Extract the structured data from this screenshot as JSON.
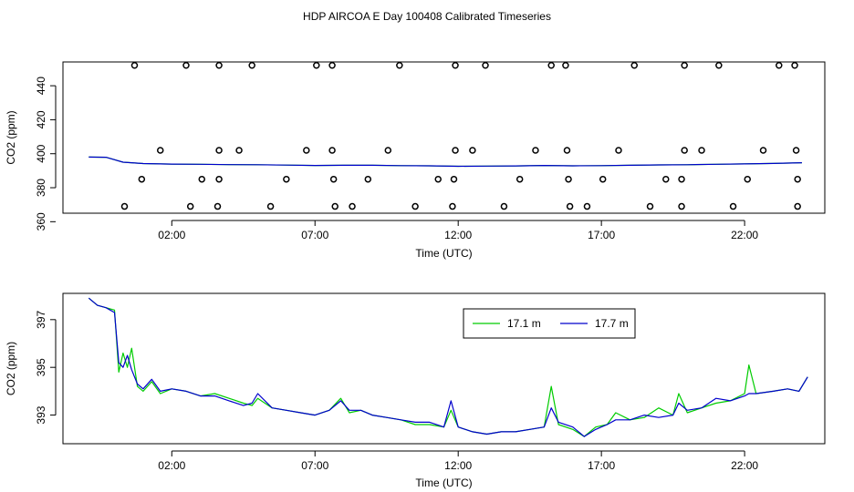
{
  "title": "HDP AIRCOA E  Day 100408  Calibrated Timeseries",
  "colors": {
    "green": "#00cc00",
    "blue": "#0000cc",
    "axis": "#000000"
  },
  "chart_data": [
    {
      "type": "line",
      "panel": "top",
      "xlabel": "Time (UTC)",
      "ylabel": "CO2 (ppm)",
      "xlim": [
        -1.8,
        24.8
      ],
      "ylim": [
        365,
        454
      ],
      "x_ticks": [
        2,
        7,
        12,
        17,
        22
      ],
      "x_tick_labels": [
        "02:00",
        "07:00",
        "12:00",
        "17:00",
        "22:00"
      ],
      "y_ticks": [
        360,
        380,
        400,
        420,
        440
      ],
      "y_tick_labels": [
        "360",
        "380",
        "400",
        "420",
        "440"
      ],
      "series": [
        {
          "color": "#00cc00",
          "x": [
            -0.9,
            -0.3,
            0.3,
            1,
            2,
            3,
            4,
            5,
            6,
            7,
            8,
            9,
            10,
            11,
            12,
            13,
            14,
            15,
            16,
            17,
            18,
            19,
            20,
            21,
            22,
            23,
            24
          ],
          "y": [
            398,
            397.9,
            395,
            394.2,
            393.9,
            393.8,
            393.6,
            393.5,
            393.3,
            393.1,
            393.2,
            393.2,
            393,
            392.9,
            392.6,
            392.7,
            392.8,
            393.1,
            392.9,
            393,
            393.2,
            393.4,
            393.5,
            393.8,
            394,
            394.3,
            394.7
          ]
        },
        {
          "color": "#0000cc",
          "x": [
            -0.9,
            -0.3,
            0.3,
            1,
            2,
            3,
            4,
            5,
            6,
            7,
            8,
            9,
            10,
            11,
            12,
            13,
            14,
            15,
            16,
            17,
            18,
            19,
            20,
            21,
            22,
            23,
            24
          ],
          "y": [
            398,
            397.9,
            395,
            394.2,
            393.9,
            393.8,
            393.6,
            393.5,
            393.3,
            393.1,
            393.2,
            393.2,
            393,
            392.9,
            392.6,
            392.7,
            392.8,
            393.1,
            392.9,
            393,
            393.2,
            393.4,
            393.5,
            393.8,
            394,
            394.3,
            394.7
          ]
        }
      ],
      "markers": [
        {
          "x": 0.7,
          "y": 452
        },
        {
          "x": 2.5,
          "y": 452
        },
        {
          "x": 3.65,
          "y": 452
        },
        {
          "x": 4.8,
          "y": 452
        },
        {
          "x": 7.05,
          "y": 452
        },
        {
          "x": 7.6,
          "y": 452
        },
        {
          "x": 9.95,
          "y": 452
        },
        {
          "x": 11.9,
          "y": 452
        },
        {
          "x": 12.95,
          "y": 452
        },
        {
          "x": 15.25,
          "y": 452
        },
        {
          "x": 15.75,
          "y": 452
        },
        {
          "x": 18.15,
          "y": 452
        },
        {
          "x": 19.9,
          "y": 452
        },
        {
          "x": 21.1,
          "y": 452
        },
        {
          "x": 23.2,
          "y": 452
        },
        {
          "x": 23.75,
          "y": 452
        },
        {
          "x": 1.6,
          "y": 402
        },
        {
          "x": 3.65,
          "y": 402
        },
        {
          "x": 4.35,
          "y": 402
        },
        {
          "x": 6.7,
          "y": 402
        },
        {
          "x": 7.6,
          "y": 402
        },
        {
          "x": 9.55,
          "y": 402
        },
        {
          "x": 11.9,
          "y": 402
        },
        {
          "x": 12.5,
          "y": 402
        },
        {
          "x": 14.7,
          "y": 402
        },
        {
          "x": 15.8,
          "y": 402
        },
        {
          "x": 17.6,
          "y": 402
        },
        {
          "x": 19.9,
          "y": 402
        },
        {
          "x": 20.5,
          "y": 402
        },
        {
          "x": 22.65,
          "y": 402
        },
        {
          "x": 23.8,
          "y": 402
        },
        {
          "x": 0.95,
          "y": 385
        },
        {
          "x": 3.05,
          "y": 385
        },
        {
          "x": 3.65,
          "y": 385
        },
        {
          "x": 6.0,
          "y": 385
        },
        {
          "x": 7.65,
          "y": 385
        },
        {
          "x": 8.85,
          "y": 385
        },
        {
          "x": 11.3,
          "y": 385
        },
        {
          "x": 11.85,
          "y": 385
        },
        {
          "x": 14.15,
          "y": 385
        },
        {
          "x": 15.85,
          "y": 385
        },
        {
          "x": 17.05,
          "y": 385
        },
        {
          "x": 19.25,
          "y": 385
        },
        {
          "x": 19.8,
          "y": 385
        },
        {
          "x": 22.1,
          "y": 385
        },
        {
          "x": 23.85,
          "y": 385
        },
        {
          "x": 0.35,
          "y": 369
        },
        {
          "x": 2.65,
          "y": 369
        },
        {
          "x": 3.6,
          "y": 369
        },
        {
          "x": 5.45,
          "y": 369
        },
        {
          "x": 7.7,
          "y": 369
        },
        {
          "x": 8.3,
          "y": 369
        },
        {
          "x": 10.5,
          "y": 369
        },
        {
          "x": 11.8,
          "y": 369
        },
        {
          "x": 13.6,
          "y": 369
        },
        {
          "x": 15.9,
          "y": 369
        },
        {
          "x": 16.5,
          "y": 369
        },
        {
          "x": 18.7,
          "y": 369
        },
        {
          "x": 19.8,
          "y": 369
        },
        {
          "x": 21.6,
          "y": 369
        },
        {
          "x": 23.85,
          "y": 369
        }
      ]
    },
    {
      "type": "line",
      "panel": "bottom",
      "xlabel": "Time (UTC)",
      "ylabel": "CO2 (ppm)",
      "xlim": [
        -1.8,
        24.8
      ],
      "ylim": [
        391.8,
        398.1
      ],
      "x_ticks": [
        2,
        7,
        12,
        17,
        22
      ],
      "x_tick_labels": [
        "02:00",
        "07:00",
        "12:00",
        "17:00",
        "22:00"
      ],
      "y_ticks": [
        393,
        395,
        397
      ],
      "y_tick_labels": [
        "393",
        "395",
        "397"
      ],
      "legend": {
        "position": "top-right",
        "entries": [
          {
            "label": "17.1 m",
            "color": "#00cc00"
          },
          {
            "label": "17.7 m",
            "color": "#0000cc"
          }
        ]
      },
      "series": [
        {
          "name": "17.1 m",
          "color": "#00cc00",
          "x": [
            -0.9,
            -0.6,
            -0.3,
            0,
            0.15,
            0.3,
            0.45,
            0.6,
            0.8,
            1,
            1.3,
            1.6,
            2,
            2.5,
            3,
            3.5,
            4,
            4.5,
            4.8,
            5,
            5.5,
            6,
            6.5,
            7,
            7.5,
            7.9,
            8.2,
            8.6,
            9,
            9.5,
            10,
            10.5,
            11,
            11.5,
            11.75,
            12,
            12.5,
            13,
            13.5,
            14,
            14.5,
            15,
            15.25,
            15.5,
            16,
            16.4,
            16.8,
            17.2,
            17.5,
            18,
            18.5,
            19,
            19.5,
            19.7,
            20,
            20.5,
            21,
            21.5,
            22,
            22.15,
            22.4,
            23,
            23.5,
            23.9,
            24.2
          ],
          "y": [
            397.9,
            397.6,
            397.5,
            397.4,
            394.8,
            395.6,
            395.0,
            395.8,
            394.2,
            394.0,
            394.4,
            393.9,
            394.1,
            394.0,
            393.8,
            393.9,
            393.7,
            393.5,
            393.4,
            393.7,
            393.3,
            393.2,
            393.1,
            393.0,
            393.2,
            393.7,
            393.1,
            393.2,
            393.0,
            392.9,
            392.8,
            392.6,
            392.6,
            392.5,
            393.2,
            392.5,
            392.3,
            392.2,
            392.3,
            392.3,
            392.4,
            392.5,
            394.2,
            392.6,
            392.4,
            392.1,
            392.5,
            392.6,
            393.1,
            392.8,
            392.9,
            393.3,
            393.0,
            393.9,
            393.1,
            393.3,
            393.5,
            393.6,
            393.9,
            395.1,
            393.9,
            394.0,
            394.1,
            394.0,
            394.6
          ]
        },
        {
          "name": "17.7 m",
          "color": "#0000cc",
          "x": [
            -0.9,
            -0.6,
            -0.3,
            0,
            0.15,
            0.3,
            0.45,
            0.6,
            0.8,
            1,
            1.3,
            1.6,
            2,
            2.5,
            3,
            3.5,
            4,
            4.5,
            4.8,
            5,
            5.5,
            6,
            6.5,
            7,
            7.5,
            7.9,
            8.2,
            8.6,
            9,
            9.5,
            10,
            10.5,
            11,
            11.5,
            11.75,
            12,
            12.5,
            13,
            13.5,
            14,
            14.5,
            15,
            15.25,
            15.5,
            16,
            16.4,
            16.8,
            17.2,
            17.5,
            18,
            18.5,
            19,
            19.5,
            19.7,
            20,
            20.5,
            21,
            21.5,
            22,
            22.15,
            22.4,
            23,
            23.5,
            23.9,
            24.2
          ],
          "y": [
            397.9,
            397.6,
            397.5,
            397.3,
            395.2,
            395.0,
            395.5,
            394.9,
            394.3,
            394.1,
            394.5,
            394.0,
            394.1,
            394.0,
            393.8,
            393.8,
            393.6,
            393.4,
            393.5,
            393.9,
            393.3,
            393.2,
            393.1,
            393.0,
            393.2,
            393.6,
            393.2,
            393.2,
            393.0,
            392.9,
            392.8,
            392.7,
            392.7,
            392.5,
            393.6,
            392.5,
            392.3,
            392.2,
            392.3,
            392.3,
            392.4,
            392.5,
            393.3,
            392.7,
            392.5,
            392.1,
            392.4,
            392.6,
            392.8,
            392.8,
            393.0,
            392.9,
            393.0,
            393.5,
            393.2,
            393.3,
            393.7,
            393.6,
            393.8,
            393.9,
            393.9,
            394.0,
            394.1,
            394.0,
            394.6
          ]
        }
      ]
    }
  ]
}
